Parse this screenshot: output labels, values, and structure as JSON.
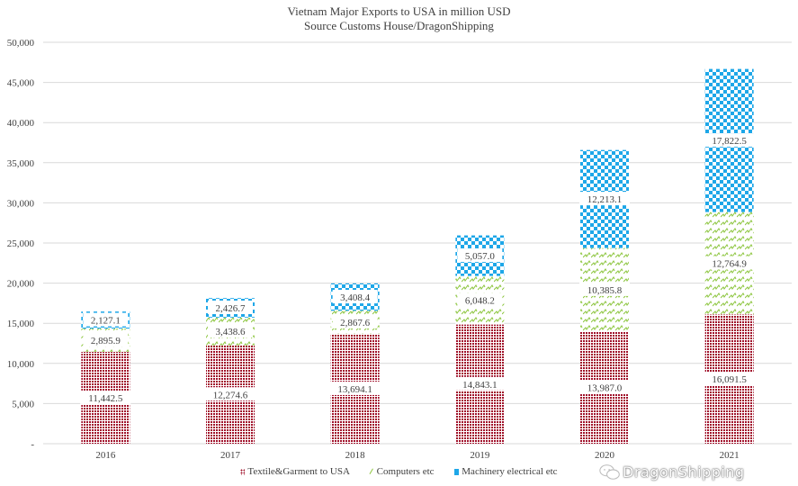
{
  "chart_data": {
    "type": "bar",
    "stacked": true,
    "title": "Vietnam Major Exports to USA in million USD",
    "subtitle": "Source Customs House/DragonShipping",
    "xlabel": "",
    "ylabel": "",
    "categories": [
      "2016",
      "2017",
      "2018",
      "2019",
      "2020",
      "2021"
    ],
    "ylim": [
      0,
      50000
    ],
    "yticks": [
      0,
      5000,
      10000,
      15000,
      20000,
      25000,
      30000,
      35000,
      40000,
      45000,
      50000
    ],
    "ytick_labels": [
      "-",
      "5,000",
      "10,000",
      "15,000",
      "20,000",
      "25,000",
      "30,000",
      "35,000",
      "40,000",
      "45,000",
      "50,000"
    ],
    "grid": true,
    "legend_position": "bottom",
    "series": [
      {
        "name": "Textile&Garment to USA",
        "color": "#a0102a",
        "pattern": "dots",
        "values": [
          11442.5,
          12274.6,
          13694.1,
          14843.1,
          13987.0,
          16091.5
        ],
        "labels": [
          "11,442.5",
          "12,274.6",
          "13,694.1",
          "14,843.1",
          "13,987.0",
          "16,091.5"
        ]
      },
      {
        "name": "Computers etc",
        "color": "#8dc63f",
        "pattern": "zigzag",
        "values": [
          2895.9,
          3438.6,
          2867.6,
          6048.2,
          10385.8,
          12764.9
        ],
        "labels": [
          "2,895.9",
          "3,438.6",
          "2,867.6",
          "6,048.2",
          "10,385.8",
          "12,764.9"
        ]
      },
      {
        "name": "Machinery electrical etc",
        "color": "#1ea7e8",
        "pattern": "checker",
        "values": [
          2127.1,
          2426.7,
          3408.4,
          5057.0,
          12213.1,
          17822.5
        ],
        "labels": [
          "2,127.1",
          "2,426.7",
          "3,408.4",
          "5,057.0",
          "12,213.1",
          "17,822.5"
        ]
      }
    ]
  },
  "watermark": "DragonShipping"
}
